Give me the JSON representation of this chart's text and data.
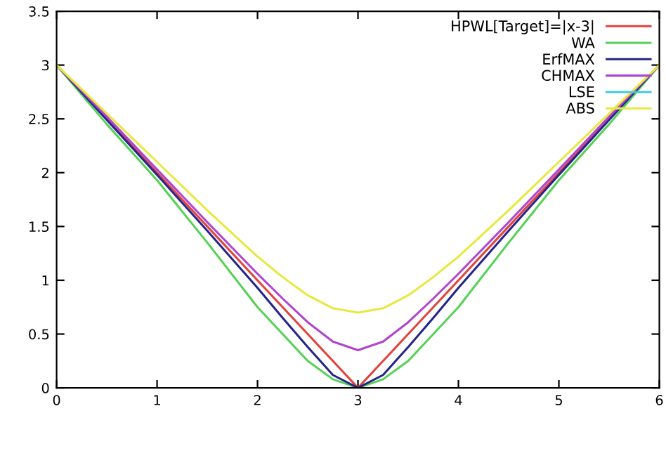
{
  "chart_data": {
    "type": "line",
    "x": [
      0,
      0.5,
      1,
      1.5,
      2,
      2.25,
      2.5,
      2.75,
      3,
      3.25,
      3.5,
      3.75,
      4,
      4.5,
      5,
      5.5,
      6
    ],
    "series": [
      {
        "name": "HPWL[Target]=|x-3|",
        "color": "#e0443c",
        "values": [
          3,
          2.5,
          2,
          1.5,
          1,
          0.75,
          0.5,
          0.25,
          0,
          0.25,
          0.5,
          0.75,
          1,
          1.5,
          2,
          2.5,
          3
        ]
      },
      {
        "name": "WA",
        "color": "#55d255",
        "values": [
          3,
          2.45,
          1.93,
          1.35,
          0.75,
          0.5,
          0.25,
          0.08,
          0,
          0.08,
          0.25,
          0.5,
          0.75,
          1.35,
          1.93,
          2.45,
          3
        ]
      },
      {
        "name": "ErfMAX",
        "color": "#24248c",
        "values": [
          3,
          2.49,
          1.98,
          1.46,
          0.93,
          0.65,
          0.38,
          0.12,
          0,
          0.12,
          0.38,
          0.65,
          0.93,
          1.46,
          1.98,
          2.49,
          3
        ]
      },
      {
        "name": "CHMAX",
        "color": "#b044d0",
        "values": [
          3,
          2.52,
          2.03,
          1.54,
          1.06,
          0.83,
          0.61,
          0.43,
          0.35,
          0.43,
          0.61,
          0.83,
          1.06,
          1.54,
          2.03,
          2.52,
          3
        ]
      },
      {
        "name": "LSE",
        "color": "#40c8e0",
        "values": [
          null,
          null,
          null,
          null,
          null,
          null,
          null,
          null,
          null,
          null,
          null,
          null,
          null,
          null,
          null,
          null,
          null
        ]
      },
      {
        "name": "ABS",
        "color": "#e8e840",
        "values": [
          3,
          2.55,
          2.1,
          1.65,
          1.22,
          1.03,
          0.86,
          0.74,
          0.7,
          0.74,
          0.86,
          1.03,
          1.22,
          1.65,
          2.1,
          2.55,
          3
        ]
      }
    ],
    "xlim": [
      0,
      6
    ],
    "xticks": [
      0,
      1,
      2,
      3,
      4,
      5,
      6
    ],
    "ylim": [
      0,
      3.5
    ],
    "yticks": [
      0,
      0.5,
      1,
      1.5,
      2,
      2.5,
      3,
      3.5
    ],
    "grid": false,
    "legend": "top right",
    "marker": "none",
    "line_style": "solid"
  }
}
